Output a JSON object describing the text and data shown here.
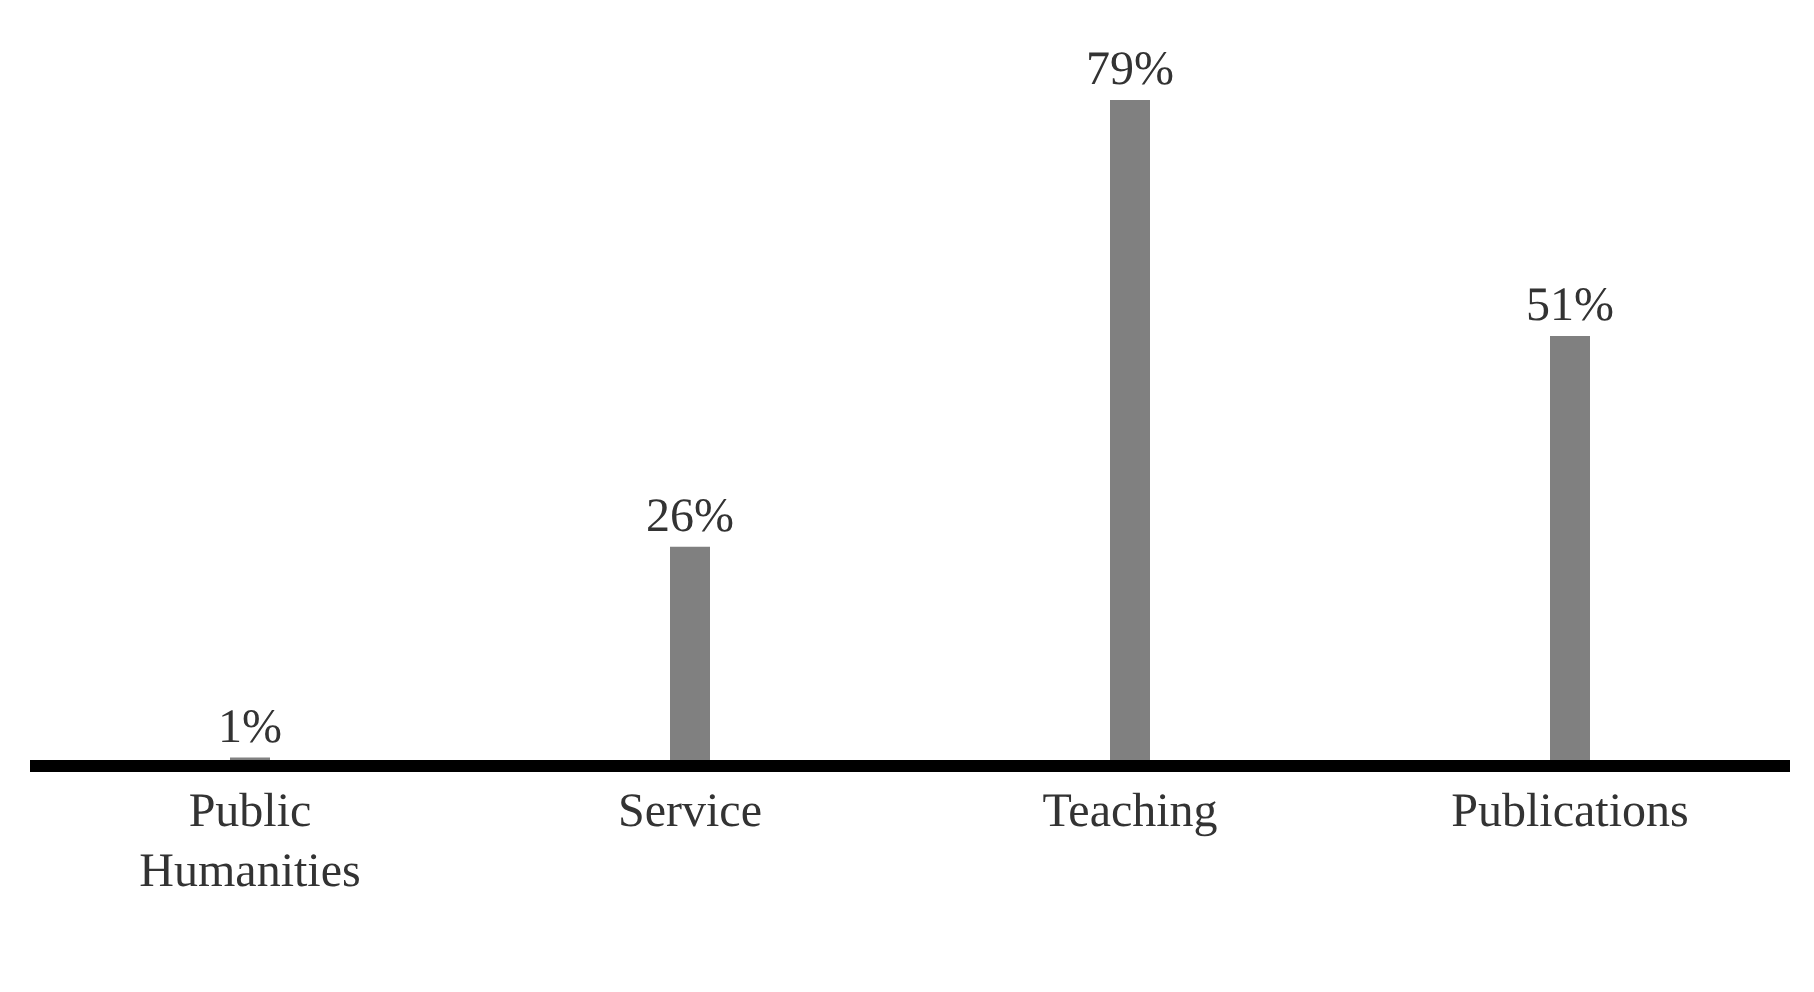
{
  "chart_data": {
    "type": "bar",
    "categories": [
      "Public Humanities",
      "Service",
      "Teaching",
      "Publications"
    ],
    "values": [
      1,
      26,
      79,
      51
    ],
    "color": "#808080",
    "value_labels": [
      "1%",
      "26%",
      "79%",
      "51%"
    ],
    "grid": false,
    "legend": false
  }
}
